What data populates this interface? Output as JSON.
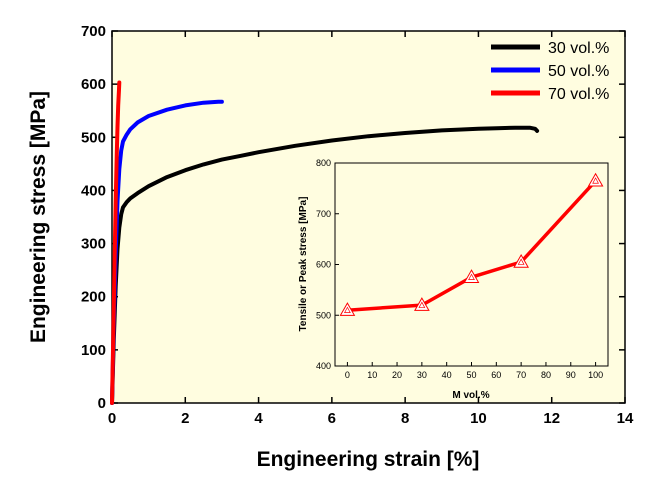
{
  "chart_data": {
    "type": "line",
    "title": "",
    "xlabel": "Engineering strain [%]",
    "ylabel": "Engineering stress [MPa]",
    "xlim": [
      0,
      14
    ],
    "ylim": [
      0,
      700
    ],
    "xticks": [
      0,
      2,
      4,
      6,
      8,
      10,
      12,
      14
    ],
    "yticks": [
      0,
      100,
      200,
      300,
      400,
      500,
      600,
      700
    ],
    "background": "#fffde0",
    "legend_position": "top-right",
    "series": [
      {
        "name": "30 vol.%",
        "color": "#000000",
        "x": [
          0,
          0.05,
          0.1,
          0.15,
          0.2,
          0.25,
          0.3,
          0.4,
          0.5,
          0.7,
          1,
          1.5,
          2,
          2.5,
          3,
          3.5,
          4,
          5,
          6,
          7,
          8,
          9,
          10,
          10.5,
          11,
          11.4,
          11.55,
          11.6
        ],
        "y": [
          0,
          120,
          220,
          290,
          330,
          355,
          368,
          378,
          385,
          395,
          408,
          425,
          438,
          449,
          458,
          465,
          472,
          484,
          494,
          502,
          508,
          513,
          516,
          517,
          518,
          518,
          516,
          512
        ]
      },
      {
        "name": "50 vol.%",
        "color": "#0000ff",
        "x": [
          0,
          0.05,
          0.1,
          0.15,
          0.2,
          0.25,
          0.3,
          0.4,
          0.5,
          0.7,
          1,
          1.5,
          2,
          2.5,
          2.9,
          3.0
        ],
        "y": [
          0,
          150,
          280,
          380,
          440,
          475,
          492,
          505,
          515,
          528,
          540,
          552,
          560,
          565,
          567,
          567
        ]
      },
      {
        "name": "70 vol.%",
        "color": "#ff0000",
        "x": [
          0,
          0.04,
          0.08,
          0.1,
          0.13,
          0.15,
          0.17,
          0.19,
          0.2
        ],
        "y": [
          0,
          150,
          300,
          380,
          470,
          520,
          560,
          590,
          603
        ]
      }
    ],
    "inset": {
      "type": "line",
      "xlabel": "M vol.%",
      "ylabel": "Tensile or Peak stress [MPa]",
      "xlim": [
        -5,
        105
      ],
      "ylim": [
        400,
        800
      ],
      "xticks": [
        0,
        10,
        20,
        30,
        40,
        50,
        60,
        70,
        80,
        90,
        100
      ],
      "yticks": [
        400,
        500,
        600,
        700,
        800
      ],
      "series": [
        {
          "name": "Tensile or Peak stress",
          "color": "#ff0000",
          "marker": "triangle",
          "x": [
            0,
            30,
            50,
            70,
            100
          ],
          "y": [
            510,
            520,
            575,
            605,
            765
          ]
        }
      ]
    }
  }
}
